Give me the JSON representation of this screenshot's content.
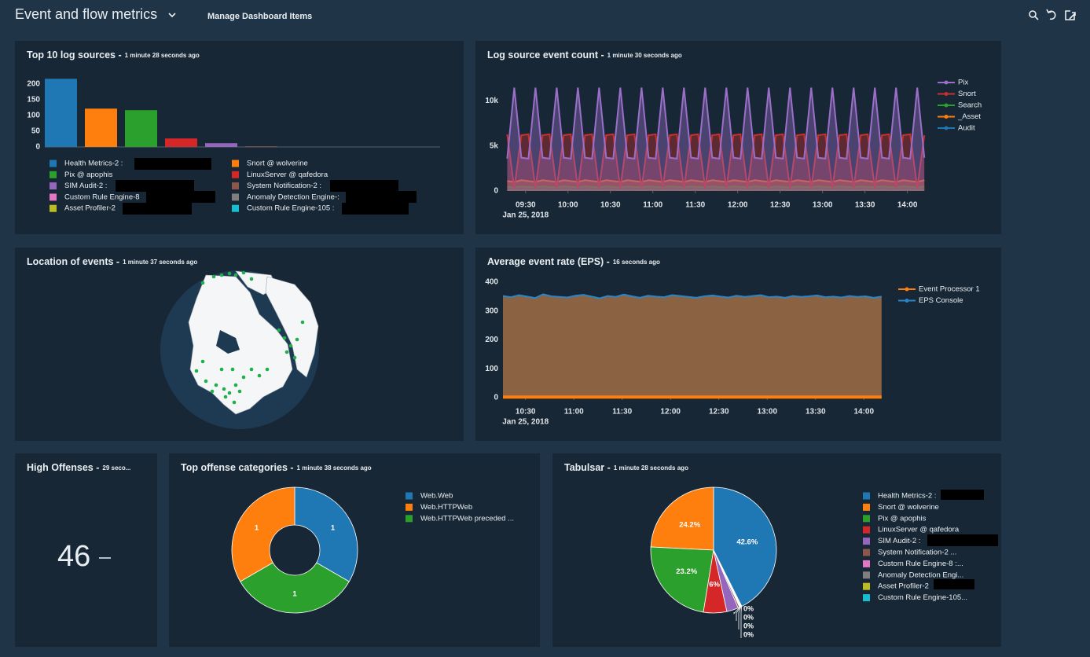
{
  "header": {
    "title": "Event and flow metrics",
    "manage": "Manage Dashboard Items"
  },
  "high_offenses": {
    "title": "High Offenses -",
    "subtitle": "29 seco...",
    "value": 46
  },
  "chart_data": [
    {
      "type": "bar",
      "title": "Top 10 log sources -",
      "subtitle": "1 minute 28 seconds ago",
      "categories": [
        "Health Metrics-2 :",
        "Snort @ wolverine",
        "Pix @ apophis",
        "LinuxServer @ qafedora",
        "SIM Audit-2 :",
        "System Notification-2 :",
        "Custom Rule Engine-8",
        "Anomaly Detection Engine-:",
        "Asset Profiler-2",
        "Custom Rule Engine-105 :"
      ],
      "values": [
        217,
        122,
        117,
        27,
        12,
        2,
        0,
        0,
        0,
        0
      ],
      "colors": [
        "#1f77b4",
        "#ff7f0e",
        "#2ca02c",
        "#d62728",
        "#9467bd",
        "#8c564b",
        "#e377c2",
        "#7f7f7f",
        "#bcbd22",
        "#17becf"
      ],
      "ylim": [
        0,
        230
      ],
      "yticks": [
        0,
        50,
        100,
        150,
        200
      ]
    },
    {
      "type": "line",
      "title": "Log source event count -",
      "subtitle": "1 minute 30 seconds ago",
      "x": [
        "09:17",
        "09:22",
        "09:27",
        "09:32",
        "09:37",
        "09:42",
        "09:47",
        "09:52",
        "09:57",
        "10:02",
        "10:07",
        "10:12",
        "10:17",
        "10:22",
        "10:27",
        "10:32",
        "10:37",
        "10:42",
        "10:47",
        "10:52",
        "10:57",
        "11:02",
        "11:07",
        "11:12",
        "11:17",
        "11:22",
        "11:27",
        "11:32",
        "11:37",
        "11:42",
        "11:47",
        "11:52",
        "11:57",
        "12:02",
        "12:07",
        "12:12",
        "12:17",
        "12:22",
        "12:27",
        "12:32",
        "12:37",
        "12:42",
        "12:47",
        "12:52",
        "12:57",
        "13:02",
        "13:07",
        "13:12",
        "13:17",
        "13:22",
        "13:27",
        "13:32",
        "13:37",
        "13:42",
        "13:47",
        "13:52",
        "13:57",
        "14:02",
        "14:07",
        "14:12"
      ],
      "series": [
        {
          "name": "Pix",
          "color": "#9b6fc9",
          "values": [
            3600,
            11500,
            3700,
            3600,
            11500,
            3700,
            3600,
            11500,
            3700,
            3600,
            11500,
            3700,
            3600,
            11500,
            3700,
            3600,
            11500,
            3700,
            3600,
            11500,
            3700,
            3600,
            11500,
            3700,
            3600,
            11500,
            3700,
            3600,
            11500,
            3700,
            3600,
            11500,
            3700,
            3600,
            11500,
            3700,
            3600,
            11500,
            3700,
            3600,
            11500,
            3700,
            3600,
            11500,
            3700,
            3600,
            11500,
            3700,
            3600,
            11500,
            3700,
            3600,
            11500,
            3700,
            3600,
            11500,
            3700,
            3600,
            11500,
            3700
          ]
        },
        {
          "name": "Snort",
          "color": "#c9302c",
          "values": [
            6300,
            300,
            6200,
            6300,
            300,
            6200,
            6300,
            300,
            6200,
            6300,
            300,
            6200,
            6300,
            300,
            6200,
            6300,
            300,
            6200,
            6300,
            300,
            6200,
            6300,
            300,
            6200,
            6300,
            300,
            6200,
            6300,
            300,
            6200,
            6300,
            300,
            6200,
            6300,
            300,
            6200,
            6300,
            300,
            6200,
            6300,
            300,
            6200,
            6300,
            300,
            6200,
            6300,
            300,
            6200,
            6300,
            300,
            6200,
            6300,
            300,
            6200,
            6300,
            300,
            6200,
            6300,
            300,
            6200
          ]
        },
        {
          "name": "Search",
          "color": "#2ca02c",
          "values": [
            450,
            400,
            500,
            450,
            400,
            500,
            450,
            400,
            500,
            450,
            400,
            500,
            450,
            400,
            500,
            450,
            400,
            500,
            450,
            400,
            500,
            450,
            400,
            500,
            450,
            400,
            500,
            450,
            400,
            500,
            450,
            400,
            500,
            450,
            400,
            500,
            450,
            400,
            500,
            450,
            400,
            500,
            450,
            400,
            500,
            450,
            400,
            500,
            450,
            400,
            500,
            450,
            400,
            500,
            450,
            400,
            500,
            450,
            400,
            500
          ]
        },
        {
          "name": "_Asset",
          "color": "#ff7f0e",
          "values": [
            1100,
            1000,
            1200,
            1100,
            1000,
            1200,
            1100,
            1000,
            1200,
            1100,
            1000,
            1200,
            1100,
            1000,
            1200,
            1100,
            1000,
            1200,
            1100,
            1000,
            1200,
            1100,
            1000,
            1200,
            1100,
            1000,
            1200,
            1100,
            1000,
            1200,
            1100,
            1000,
            1200,
            1100,
            1000,
            1200,
            1100,
            1000,
            1200,
            1100,
            1000,
            1200,
            1100,
            1000,
            1200,
            1100,
            1000,
            1200,
            1100,
            1000,
            1200,
            1100,
            1000,
            1200,
            1100,
            1000,
            1200,
            1100,
            1000,
            1200
          ]
        },
        {
          "name": "Audit",
          "color": "#1f77b4",
          "values": [
            150,
            120,
            160,
            150,
            120,
            160,
            150,
            120,
            160,
            150,
            120,
            160,
            150,
            120,
            160,
            150,
            120,
            160,
            150,
            120,
            160,
            150,
            120,
            160,
            150,
            120,
            160,
            150,
            120,
            160,
            150,
            120,
            160,
            150,
            120,
            160,
            150,
            120,
            160,
            150,
            120,
            160,
            150,
            120,
            160,
            150,
            120,
            160,
            150,
            120,
            160,
            150,
            120,
            160,
            150,
            120,
            160,
            150,
            120,
            160
          ]
        }
      ],
      "xlim": [
        "09:14",
        "14:13"
      ],
      "xticks": [
        "09:30",
        "10:00",
        "10:30",
        "11:00",
        "11:30",
        "12:00",
        "12:30",
        "13:00",
        "13:30",
        "14:00"
      ],
      "x_date": "Jan 25, 2018",
      "ylim": [
        0,
        12500
      ],
      "yticks": [
        0,
        {
          "value": 5000,
          "label": "5k"
        },
        {
          "value": 10000,
          "label": "10k"
        }
      ]
    },
    {
      "type": "map",
      "title": "Location of events -",
      "subtitle": "1 minute 37 seconds ago"
    },
    {
      "type": "area",
      "title": "Average event rate (EPS) -",
      "subtitle": "16 seconds ago",
      "x": [
        "10:16",
        "10:21",
        "10:26",
        "10:31",
        "10:36",
        "10:41",
        "10:46",
        "10:51",
        "10:56",
        "11:01",
        "11:06",
        "11:11",
        "11:16",
        "11:21",
        "11:26",
        "11:31",
        "11:36",
        "11:41",
        "11:46",
        "11:51",
        "11:56",
        "12:01",
        "12:06",
        "12:11",
        "12:16",
        "12:21",
        "12:26",
        "12:31",
        "12:36",
        "12:41",
        "12:46",
        "12:51",
        "12:56",
        "13:01",
        "13:06",
        "13:11",
        "13:16",
        "13:21",
        "13:26",
        "13:31",
        "13:36",
        "13:41",
        "13:46",
        "13:51",
        "13:56",
        "14:01",
        "14:06",
        "14:11"
      ],
      "series": [
        {
          "name": "Event Processor 1",
          "color": "#ff7f0e",
          "values": [
            2,
            2,
            2,
            2,
            2,
            2,
            2,
            2,
            2,
            2,
            2,
            2,
            2,
            2,
            2,
            2,
            2,
            2,
            2,
            2,
            2,
            2,
            2,
            2,
            2,
            2,
            2,
            2,
            2,
            2,
            2,
            2,
            2,
            2,
            2,
            2,
            2,
            2,
            2,
            2,
            2,
            2,
            2,
            2,
            2,
            2,
            2,
            2
          ]
        },
        {
          "name": "EPS Console",
          "color": "#2a86c8",
          "fill": "#8b6342",
          "values": [
            352,
            348,
            355,
            350,
            345,
            358,
            351,
            349,
            347,
            353,
            356,
            350,
            344,
            352,
            349,
            357,
            351,
            346,
            353,
            350,
            348,
            355,
            352,
            349,
            346,
            351,
            354,
            350,
            347,
            353,
            349,
            352,
            355,
            348,
            350,
            346,
            352,
            349,
            351,
            354,
            348,
            350,
            347,
            352,
            349,
            351,
            346,
            350
          ]
        }
      ],
      "xlim": [
        "10:16",
        "14:15"
      ],
      "xticks": [
        "10:30",
        "11:00",
        "11:30",
        "12:00",
        "12:30",
        "13:00",
        "13:30",
        "14:00"
      ],
      "x_date": "Jan 25, 2018",
      "ylim": [
        0,
        400
      ],
      "yticks": [
        0,
        100,
        200,
        300,
        400
      ]
    },
    {
      "type": "pie",
      "hole": 0.4,
      "title": "Top offense categories -",
      "subtitle": "1 minute 38 seconds ago",
      "categories": [
        "Web.Web",
        "Web.HTTPWeb",
        "Web.HTTPWeb  preceded ..."
      ],
      "values": [
        1,
        1,
        1
      ],
      "colors": [
        "#1f77b4",
        "#ff7f0e",
        "#2ca02c"
      ]
    },
    {
      "type": "pie",
      "title": "Tabulsar -",
      "subtitle": "1 minute 28 seconds ago",
      "categories": [
        "Health Metrics-2 :",
        "Snort @ wolverine",
        "Pix @ apophis",
        "LinuxServer @ qafedora",
        "SIM Audit-2 :",
        "System Notification-2 ...",
        "Custom Rule Engine-8 :...",
        "Anomaly Detection Engi...",
        "Asset Profiler-2",
        "Custom Rule Engine-105..."
      ],
      "values": [
        42.6,
        24.2,
        23.2,
        6,
        3.0,
        0.4,
        0.15,
        0.15,
        0.15,
        0.15
      ],
      "value_labels": [
        "42.6%",
        "24.2%",
        "23.2%",
        "6%",
        null,
        null,
        "0%",
        "0%",
        "0%",
        "0%"
      ],
      "colors": [
        "#1f77b4",
        "#ff7f0e",
        "#2ca02c",
        "#d62728",
        "#9467bd",
        "#8c564b",
        "#e377c2",
        "#7f7f7f",
        "#bcbd22",
        "#17becf"
      ]
    }
  ]
}
